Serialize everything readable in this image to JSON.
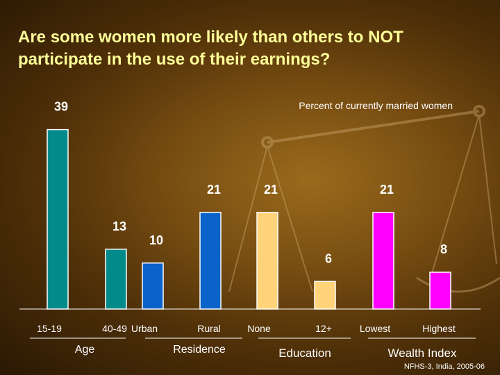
{
  "title": {
    "line1": "Are some women more likely than others to NOT",
    "line2": "participate in the use of their earnings?"
  },
  "source": "NFHS-3, India, 2005-06",
  "colors": {
    "title": "#ffff99",
    "text": "#ffffff",
    "Age": "#008a8a",
    "Residence": "#0b63c9",
    "Education": "#ffd37a",
    "Wealth Index": "#ff00ff"
  },
  "chart_data": {
    "type": "bar",
    "subtitle": "Percent of currently married women",
    "ylim": [
      0,
      40
    ],
    "grid": false,
    "categories": [
      "15-19",
      "40-49",
      "Urban",
      "Rural",
      "None",
      "12+",
      "Lowest",
      "Highest"
    ],
    "values": [
      39,
      13,
      10,
      21,
      21,
      6,
      21,
      8
    ],
    "groups": [
      {
        "name": "Age",
        "categories": [
          "15-19",
          "40-49"
        ],
        "values": [
          39,
          13
        ]
      },
      {
        "name": "Residence",
        "categories": [
          "Urban",
          "Rural"
        ],
        "values": [
          10,
          21
        ]
      },
      {
        "name": "Education",
        "categories": [
          "None",
          "12+"
        ],
        "values": [
          21,
          6
        ]
      },
      {
        "name": "Wealth Index",
        "categories": [
          "Lowest",
          "Highest"
        ],
        "values": [
          21,
          8
        ]
      }
    ]
  }
}
